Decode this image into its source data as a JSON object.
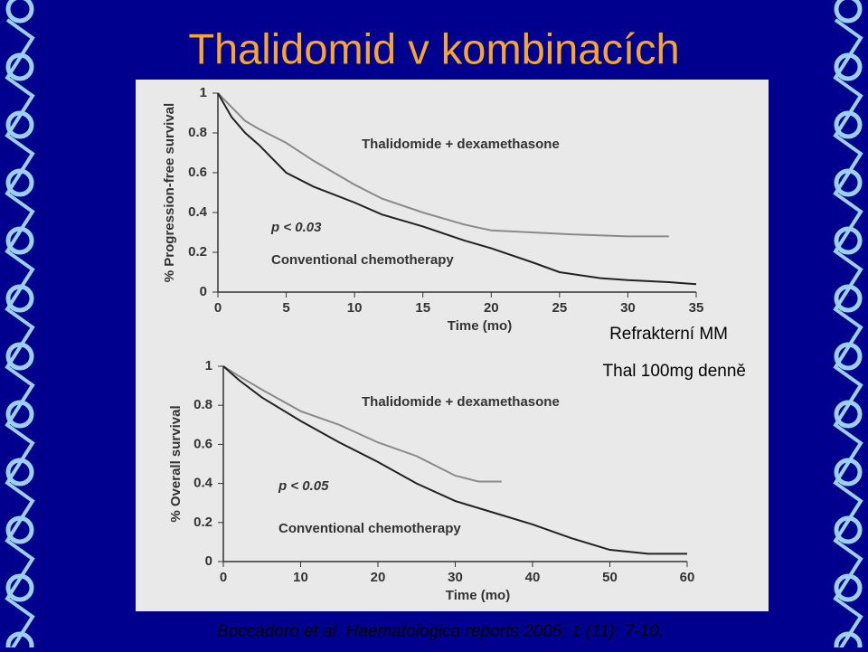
{
  "slide": {
    "title": "Thalidomid v kombinacích",
    "notes": [
      "Refrakterní MM",
      "Thal 100mg denně"
    ],
    "citation": "Boccadoro et al. Haematologica reports 2005; 1 (11): 7-10."
  },
  "chart_data": [
    {
      "type": "line",
      "y_label": "% Progression-free survival",
      "x_label": "Time (mo)",
      "annotation": "p < 0.03",
      "xlim": [
        0,
        35
      ],
      "xticks": [
        0,
        5,
        10,
        15,
        20,
        25,
        30,
        35
      ],
      "ylim": [
        0,
        1
      ],
      "yticks": [
        0,
        0.2,
        0.4,
        0.6,
        0.8,
        1
      ],
      "series": [
        {
          "name": "Thalidomide + dexamethasone",
          "color": "#8a8a8a",
          "x": [
            0,
            1,
            2,
            3,
            5,
            7,
            10,
            12,
            15,
            18,
            20,
            23,
            26,
            30,
            33
          ],
          "values": [
            1,
            0.93,
            0.86,
            0.82,
            0.75,
            0.66,
            0.54,
            0.47,
            0.4,
            0.34,
            0.31,
            0.3,
            0.29,
            0.28,
            0.28
          ]
        },
        {
          "name": "Conventional chemotherapy",
          "color": "#222222",
          "x": [
            0,
            1,
            2,
            3,
            5,
            7,
            10,
            12,
            15,
            18,
            20,
            23,
            25,
            28,
            30,
            33,
            35
          ],
          "values": [
            1,
            0.88,
            0.8,
            0.74,
            0.6,
            0.53,
            0.45,
            0.39,
            0.33,
            0.26,
            0.22,
            0.15,
            0.1,
            0.07,
            0.06,
            0.05,
            0.04
          ]
        }
      ]
    },
    {
      "type": "line",
      "y_label": "% Overall survival",
      "x_label": "Time (mo)",
      "annotation": "p < 0.05",
      "xlim": [
        0,
        60
      ],
      "xticks": [
        0,
        10,
        20,
        30,
        40,
        50,
        60
      ],
      "ylim": [
        0,
        1
      ],
      "yticks": [
        0,
        0.2,
        0.4,
        0.6,
        0.8,
        1
      ],
      "series": [
        {
          "name": "Thalidomide + dexamethasone",
          "color": "#8a8a8a",
          "x": [
            0,
            2,
            5,
            10,
            15,
            20,
            25,
            30,
            33,
            36
          ],
          "values": [
            1,
            0.95,
            0.88,
            0.77,
            0.7,
            0.61,
            0.54,
            0.44,
            0.41,
            0.41
          ]
        },
        {
          "name": "Conventional chemotherapy",
          "color": "#222222",
          "x": [
            0,
            2,
            5,
            10,
            15,
            20,
            25,
            30,
            35,
            40,
            45,
            50,
            55,
            60
          ],
          "values": [
            1,
            0.93,
            0.84,
            0.72,
            0.61,
            0.51,
            0.4,
            0.31,
            0.25,
            0.19,
            0.12,
            0.06,
            0.04,
            0.04
          ]
        }
      ]
    }
  ]
}
